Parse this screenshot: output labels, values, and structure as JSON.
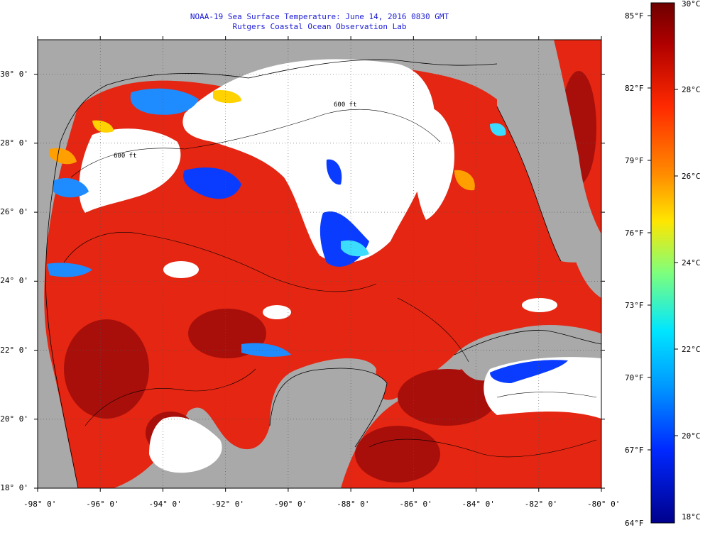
{
  "title": {
    "line1": "NOAA-19 Sea Surface Temperature:  June 14, 2016 0830 GMT",
    "line2": "Rutgers Coastal Ocean Observation Lab"
  },
  "map": {
    "lon_range": [
      -98,
      -80
    ],
    "lat_range": [
      18,
      31
    ],
    "lon_labels": [
      "-98° 0'",
      "-96° 0'",
      "-94° 0'",
      "-92° 0'",
      "-90° 0'",
      "-88° 0'",
      "-86° 0'",
      "-84° 0'",
      "-82° 0'",
      "-80° 0'"
    ],
    "lat_labels": [
      "30° 0'",
      "28° 0'",
      "26° 0'",
      "24° 0'",
      "22° 0'",
      "20° 0'",
      "18° 0'"
    ],
    "contour_label": "600 ft",
    "colors": {
      "land": "#a9a9a9",
      "cloud": "#ffffff",
      "warm_sea": "#e42612",
      "hot_sea": "#a80f0a"
    }
  },
  "colorbar": {
    "colors": [
      "#6e0000",
      "#c00000",
      "#ff2a00",
      "#ff8c00",
      "#ffe600",
      "#7dff7d",
      "#00e6ff",
      "#0096ff",
      "#0028ff",
      "#00008c"
    ],
    "fahrenheit": [
      "85°F",
      "82°F",
      "79°F",
      "76°F",
      "73°F",
      "70°F",
      "67°F",
      "64°F"
    ],
    "celsius": [
      "30°C",
      "28°C",
      "26°C",
      "24°C",
      "22°C",
      "20°C",
      "18°C"
    ]
  }
}
